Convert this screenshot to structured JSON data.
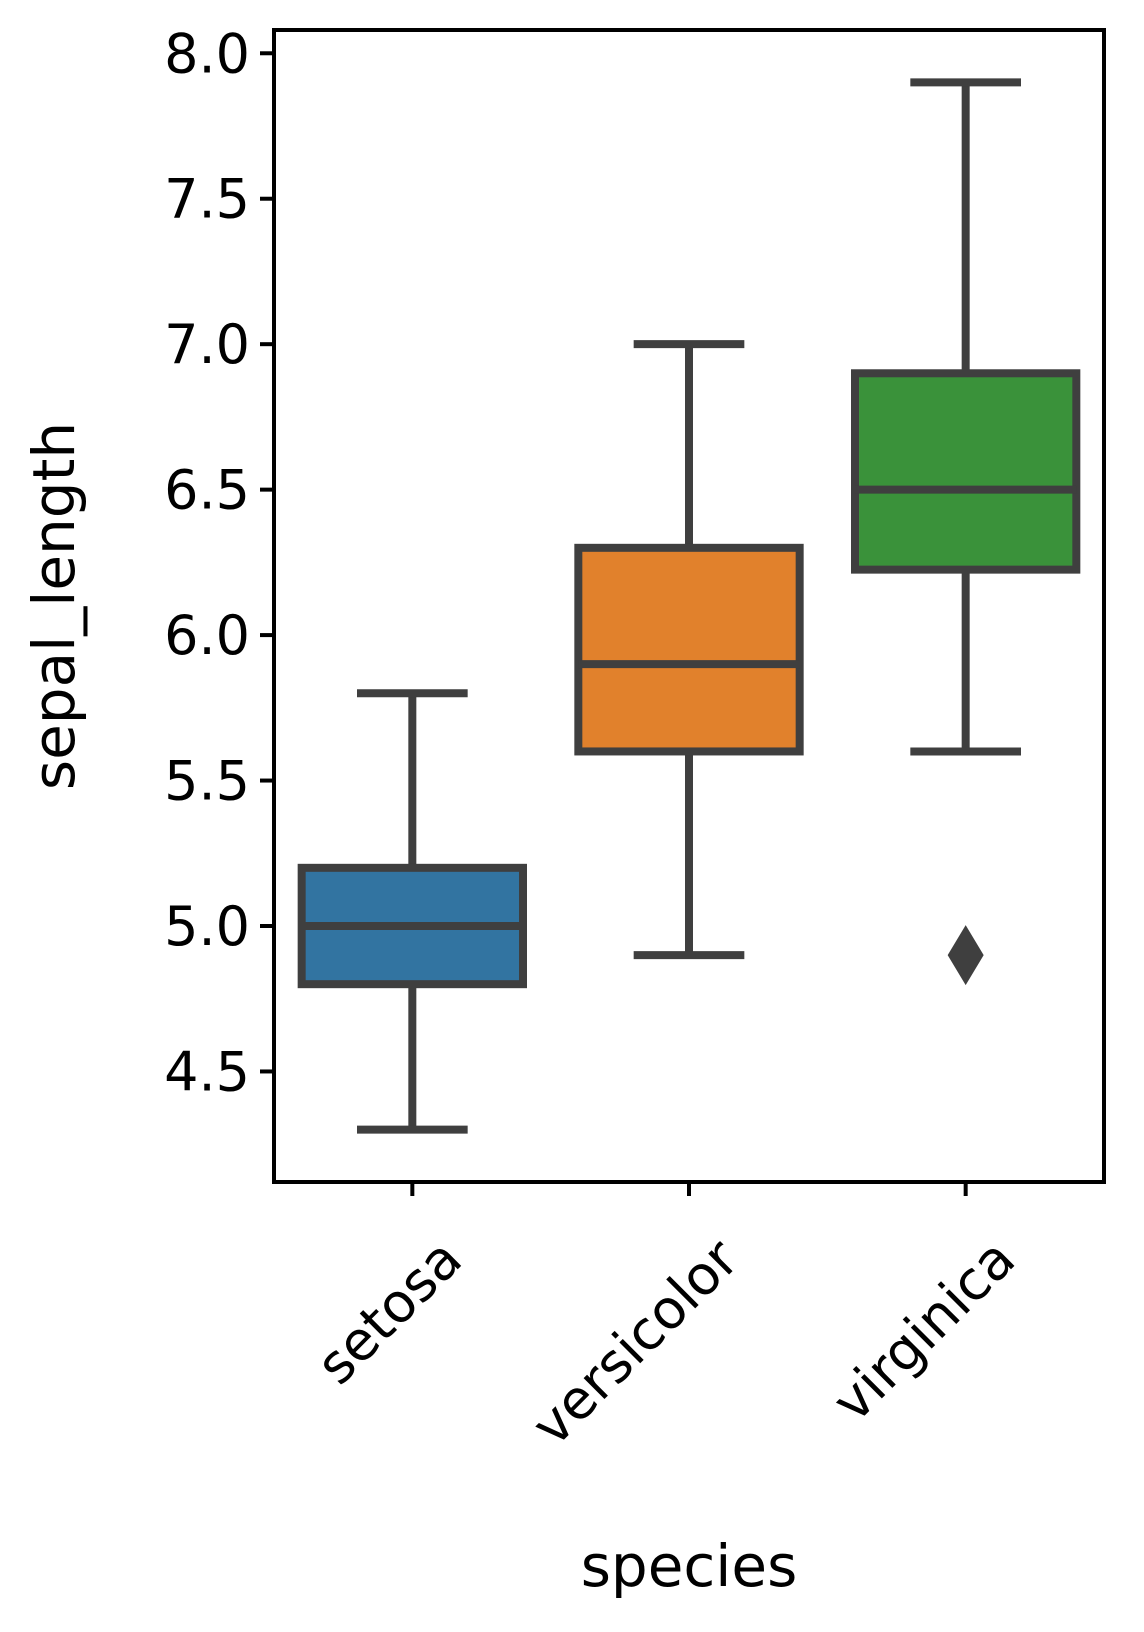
{
  "chart_data": {
    "type": "box",
    "title": "",
    "xlabel": "species",
    "ylabel": "sepal_length",
    "categories": [
      "setosa",
      "versicolor",
      "virginica"
    ],
    "ylim": [
      4.12,
      8.08
    ],
    "yticks": [
      4.5,
      5.0,
      5.5,
      6.0,
      6.5,
      7.0,
      7.5,
      8.0
    ],
    "ytick_labels": [
      "4.5",
      "5.0",
      "5.5",
      "6.0",
      "6.5",
      "7.0",
      "7.5",
      "8.0"
    ],
    "grid": false,
    "boxes": [
      {
        "category": "setosa",
        "whisker_low": 4.3,
        "q1": 4.8,
        "median": 5.0,
        "q3": 5.2,
        "whisker_high": 5.8,
        "outliers": [],
        "color": "#3274a1"
      },
      {
        "category": "versicolor",
        "whisker_low": 4.9,
        "q1": 5.6,
        "median": 5.9,
        "q3": 6.3,
        "whisker_high": 7.0,
        "outliers": [],
        "color": "#e1812c"
      },
      {
        "category": "virginica",
        "whisker_low": 5.6,
        "q1": 6.225,
        "median": 6.5,
        "q3": 6.9,
        "whisker_high": 7.9,
        "outliers": [
          4.9
        ],
        "color": "#3a923a"
      }
    ],
    "line_color": "#3f3f3f",
    "axis_color": "#000000"
  }
}
